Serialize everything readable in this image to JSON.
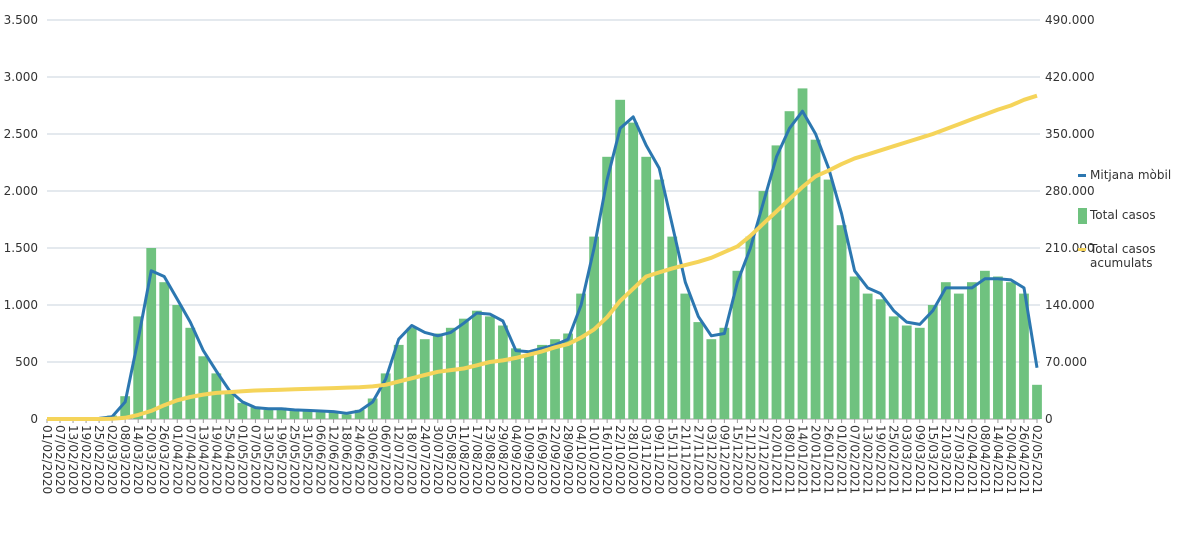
{
  "chart_data": {
    "type": "bar",
    "categories": [
      "01/02/2020",
      "07/02/2020",
      "13/02/2020",
      "19/02/2020",
      "25/02/2020",
      "02/03/2020",
      "08/03/2020",
      "14/03/2020",
      "20/03/2020",
      "26/03/2020",
      "01/04/2020",
      "07/04/2020",
      "13/04/2020",
      "19/04/2020",
      "25/04/2020",
      "01/05/2020",
      "07/05/2020",
      "13/05/2020",
      "19/05/2020",
      "25/05/2020",
      "31/05/2020",
      "06/06/2020",
      "12/06/2020",
      "18/06/2020",
      "24/06/2020",
      "30/06/2020",
      "06/07/2020",
      "12/07/2020",
      "18/07/2020",
      "24/07/2020",
      "30/07/2020",
      "05/08/2020",
      "11/08/2020",
      "17/08/2020",
      "23/08/2020",
      "29/08/2020",
      "04/09/2020",
      "10/09/2020",
      "16/09/2020",
      "22/09/2020",
      "28/09/2020",
      "04/10/2020",
      "10/10/2020",
      "16/10/2020",
      "22/10/2020",
      "28/10/2020",
      "03/11/2020",
      "09/11/2020",
      "15/11/2020",
      "21/11/2020",
      "27/11/2020",
      "03/12/2020",
      "09/12/2020",
      "15/12/2020",
      "21/12/2020",
      "27/12/2020",
      "02/01/2021",
      "08/01/2021",
      "14/01/2021",
      "20/01/2021",
      "26/01/2021",
      "01/02/2021",
      "07/02/2021",
      "13/02/2021",
      "19/02/2021",
      "25/02/2021",
      "03/03/2021",
      "09/03/2021",
      "15/03/2021",
      "21/03/2021",
      "27/03/2021",
      "02/04/2021",
      "08/04/2021",
      "14/04/2021",
      "20/04/2021",
      "26/04/2021",
      "02/05/2021"
    ],
    "series": [
      {
        "name": "Mitjana mòbil",
        "type": "line",
        "color": "#2c77b0",
        "values": [
          0,
          0,
          0,
          0,
          5,
          20,
          150,
          700,
          1300,
          1250,
          1050,
          850,
          600,
          420,
          250,
          150,
          100,
          90,
          90,
          80,
          75,
          70,
          65,
          50,
          70,
          150,
          350,
          700,
          820,
          760,
          730,
          760,
          840,
          930,
          920,
          860,
          600,
          590,
          620,
          650,
          700,
          1000,
          1500,
          2100,
          2550,
          2650,
          2400,
          2200,
          1700,
          1200,
          900,
          730,
          750,
          1200,
          1500,
          1900,
          2300,
          2550,
          2700,
          2500,
          2200,
          1800,
          1300,
          1150,
          1100,
          950,
          850,
          830,
          950,
          1150,
          1150,
          1150,
          1230,
          1230,
          1220,
          1150,
          450
        ]
      },
      {
        "name": "Total casos",
        "type": "bar",
        "color": "#6fc27f",
        "values": [
          0,
          0,
          0,
          0,
          10,
          30,
          200,
          900,
          1500,
          1200,
          1000,
          800,
          550,
          400,
          230,
          140,
          110,
          80,
          100,
          70,
          80,
          60,
          70,
          40,
          80,
          180,
          400,
          650,
          800,
          700,
          750,
          800,
          880,
          950,
          900,
          820,
          620,
          560,
          650,
          700,
          750,
          1100,
          1600,
          2300,
          2800,
          2600,
          2300,
          2100,
          1600,
          1100,
          850,
          700,
          800,
          1300,
          1600,
          2000,
          2400,
          2700,
          2900,
          2450,
          2100,
          1700,
          1250,
          1100,
          1050,
          900,
          820,
          800,
          1000,
          1200,
          1100,
          1200,
          1300,
          1250,
          1200,
          1100,
          300
        ]
      },
      {
        "name": "Total casos acumulats",
        "type": "line",
        "axis": "y2",
        "color": "#f5d45a",
        "values": [
          0,
          0,
          0,
          0,
          0,
          200,
          1500,
          5000,
          10000,
          17000,
          23000,
          27000,
          30000,
          32000,
          33000,
          34000,
          35000,
          35500,
          36000,
          36500,
          37000,
          37500,
          38000,
          38500,
          39000,
          40000,
          42000,
          46000,
          50000,
          54000,
          58000,
          60000,
          62000,
          66000,
          70000,
          72000,
          75000,
          79000,
          83000,
          88000,
          92000,
          100000,
          110000,
          125000,
          145000,
          160000,
          175000,
          180000,
          185000,
          189000,
          193000,
          198000,
          205000,
          212000,
          225000,
          240000,
          255000,
          270000,
          285000,
          298000,
          305000,
          313000,
          320000,
          325000,
          330000,
          335000,
          340000,
          345000,
          350000,
          356000,
          362000,
          368000,
          374000,
          380000,
          385000,
          392000,
          397000
        ]
      }
    ],
    "ylim": [
      0,
      3500
    ],
    "yticks": [
      0,
      500,
      {
        "value": 1000,
        "label": "1.000"
      },
      {
        "value": 1500,
        "label": "1.500"
      },
      {
        "value": 2000,
        "label": "2.000"
      },
      {
        "value": 2500,
        "label": "2.500"
      },
      {
        "value": 3000,
        "label": "3.000"
      },
      {
        "value": 3500,
        "label": "3.500"
      }
    ],
    "y2lim": [
      0,
      490000
    ],
    "y2ticks": [
      0,
      {
        "value": 70000,
        "label": "70.000"
      },
      {
        "value": 140000,
        "label": "140.000"
      },
      {
        "value": 210000,
        "label": "210.000"
      },
      {
        "value": 280000,
        "label": "280.000"
      },
      {
        "value": 350000,
        "label": "350.000"
      },
      {
        "value": 420000,
        "label": "420.000"
      },
      {
        "value": 490000,
        "label": "490.000"
      }
    ],
    "grid": true,
    "legend": "right"
  }
}
